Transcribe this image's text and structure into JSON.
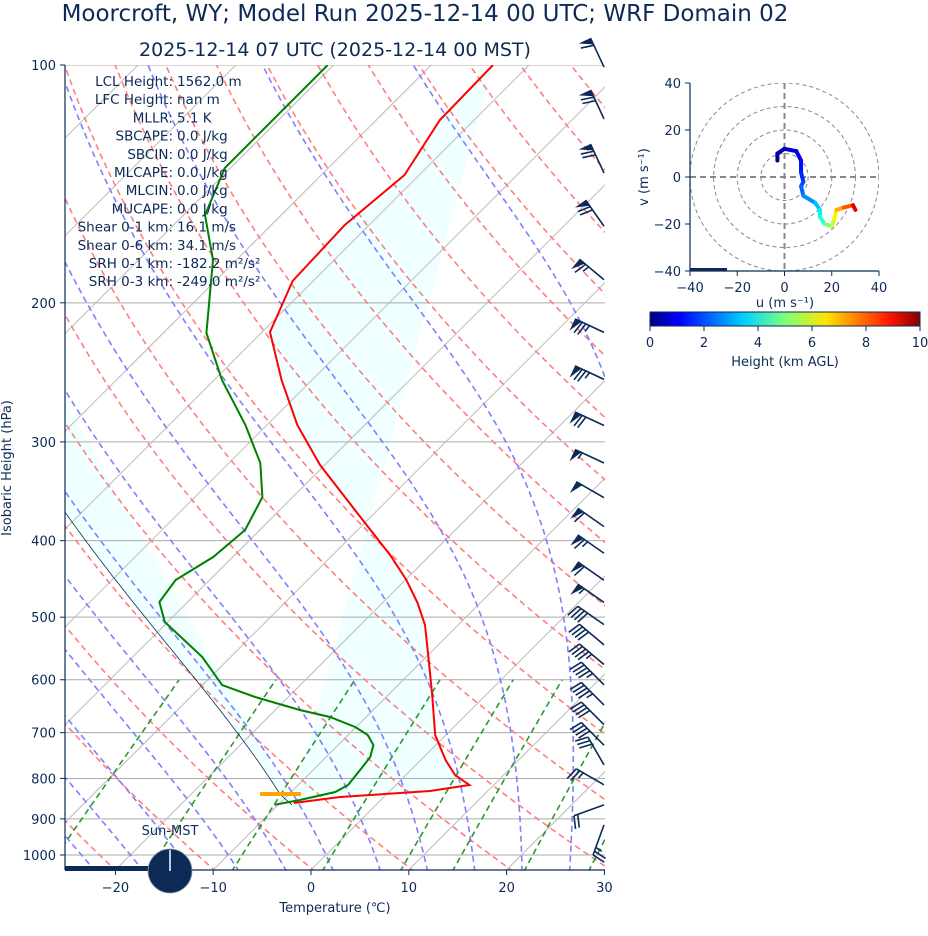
{
  "title": "Moorcroft, WY; Model Run 2025-12-14 00 UTC; WRF Domain 02",
  "subtitle": "2025-12-14 07 UTC  (2025-12-14 00 MST)",
  "stats": [
    {
      "label": "LCL Height:",
      "value": "1562.0 m"
    },
    {
      "label": "LFC Height:",
      "value": "nan m"
    },
    {
      "label": "MLLR:",
      "value": "5.1 K"
    },
    {
      "label": "SBCAPE:",
      "value": "0.0 J/kg"
    },
    {
      "label": "SBCIN:",
      "value": "0.0 J/kg"
    },
    {
      "label": "MLCAPE:",
      "value": "0.0 J/kg"
    },
    {
      "label": "MLCIN:",
      "value": "0.0 J/kg"
    },
    {
      "label": "MUCAPE:",
      "value": "0.0 J/kg"
    },
    {
      "label": "Shear 0-1 km:",
      "value": "16.1 m/s"
    },
    {
      "label": "Shear 0-6 km:",
      "value": "34.1 m/s"
    },
    {
      "label": "SRH 0-1 km:",
      "value": "-182.2 m²/s²"
    },
    {
      "label": "SRH 0-3 km:",
      "value": "-249.0 m²/s²"
    }
  ],
  "sun_label": "Sun-MST",
  "colors": {
    "temperature": "#ff0000",
    "dewpoint": "#008000",
    "axis": "#0d2a57",
    "lcl": "#ffa500",
    "cin_fill": "#f0ffff"
  },
  "chart_data": [
    {
      "type": "line",
      "title": "Skew-T log-P",
      "xlabel": "Temperature (℃)",
      "ylabel": "Isobaric Height (hPa)",
      "xlim": [
        -25,
        30
      ],
      "ylim": [
        1045,
        100
      ],
      "xticks": [
        "−20",
        "−10",
        "0",
        "10",
        "20",
        "30"
      ],
      "xtick_values": [
        -20,
        -10,
        0,
        10,
        20,
        30
      ],
      "yticks": [
        "100",
        "200",
        "300",
        "400",
        "500",
        "600",
        "700",
        "800",
        "900",
        "1000"
      ],
      "ytick_values": [
        100,
        200,
        300,
        400,
        500,
        600,
        700,
        800,
        900,
        1000
      ],
      "lcl_pressure": 837,
      "series": [
        {
          "name": "Temperature",
          "p": [
            100,
            117.4,
            137.8,
            159.4,
            187.7,
            217.8,
            250.5,
            285.6,
            320.8,
            365.9,
            417.2,
            448.6,
            479.8,
            511.5,
            558.2,
            627.3,
            704.9,
            758,
            791.9,
            815.4,
            829.8,
            844.4,
            859.3
          ],
          "T": [
            -63.7,
            -63.5,
            -61.5,
            -62.5,
            -62.1,
            -59.2,
            -53.1,
            -46.9,
            -40.5,
            -32.3,
            -24.1,
            -19.9,
            -16.4,
            -13.4,
            -10.0,
            -5.5,
            -1.1,
            2.5,
            5.0,
            7.5,
            4.1,
            -4.5,
            -8.6
          ]
        },
        {
          "name": "Dewpoint",
          "p": [
            100,
            135,
            154.9,
            176.5,
            218.4,
            250.5,
            285.6,
            319,
            352.3,
            387.8,
            419.6,
            448.6,
            478.4,
            507.1,
            561.5,
            609.4,
            631,
            655.4,
            668.8,
            688.7,
            704.9,
            725.7,
            751.4,
            780.4,
            815.4,
            832.3,
            851.8,
            864
          ],
          "T": [
            -80.6,
            -80.6,
            -77.8,
            -72.4,
            -65.6,
            -59.2,
            -52.2,
            -46.8,
            -43.1,
            -41.5,
            -42.0,
            -43.5,
            -42.9,
            -40.3,
            -32.9,
            -28.0,
            -23.4,
            -17.5,
            -13.7,
            -10.1,
            -8.0,
            -6.4,
            -5.5,
            -5.2,
            -4.9,
            -5.5,
            -8.3,
            -10.4
          ]
        }
      ],
      "parcel_start": {
        "p": 864,
        "T": -8.6
      },
      "wind_barbs": {
        "units": "kt",
        "p": [
          100.6,
          117,
          137,
          160,
          187,
          218,
          250,
          286,
          319,
          353,
          384,
          415,
          449,
          479,
          511,
          542,
          574,
          609,
          646,
          684,
          726,
          769,
          815,
          864,
          916
        ],
        "dir": [
          335,
          335,
          335,
          325,
          310,
          295,
          295,
          295,
          295,
          300,
          305,
          305,
          305,
          305,
          305,
          310,
          310,
          315,
          315,
          315,
          315,
          330,
          300,
          250,
          200
        ],
        "spd": [
          60,
          70,
          70,
          70,
          65,
          75,
          75,
          70,
          55,
          50,
          60,
          65,
          60,
          55,
          40,
          40,
          45,
          45,
          45,
          40,
          40,
          30,
          25,
          20,
          25
        ]
      }
    },
    {
      "type": "line",
      "title": "Hodograph",
      "xlabel": "u (m s⁻¹)",
      "ylabel": "v (m s⁻¹)",
      "xlim": [
        -40,
        40
      ],
      "ylim": [
        -40,
        40
      ],
      "xticks": [
        "−40",
        "−20",
        "0",
        "20",
        "40"
      ],
      "xtick_values": [
        -40,
        -20,
        0,
        20,
        40
      ],
      "yticks": [
        "40",
        "20",
        "0",
        "−20",
        "−40"
      ],
      "ytick_values": [
        40,
        20,
        0,
        -20,
        -40
      ],
      "rings": [
        10,
        20,
        30,
        40
      ],
      "u": [
        -3,
        -3,
        0,
        5,
        7,
        7,
        8,
        7,
        8,
        13,
        15,
        15,
        17,
        20,
        21,
        22,
        25,
        29,
        30
      ],
      "v": [
        7,
        10,
        12,
        11,
        7,
        2,
        -2,
        -4,
        -8,
        -11,
        -14,
        -17,
        -20,
        -21,
        -18,
        -14,
        -13,
        -12,
        -14
      ],
      "height_km": [
        0,
        0.3,
        0.6,
        0.9,
        1.2,
        1.5,
        1.8,
        2.1,
        2.4,
        2.9,
        3.4,
        3.9,
        4.5,
        5.3,
        6.0,
        6.7,
        7.4,
        8.4,
        9.5
      ],
      "colorbar": {
        "label": "Height (km AGL)",
        "ticks": [
          "0",
          "2",
          "4",
          "6",
          "8",
          "10"
        ],
        "tick_values": [
          0,
          2,
          4,
          6,
          8,
          10
        ],
        "range": [
          0,
          10
        ]
      }
    }
  ]
}
